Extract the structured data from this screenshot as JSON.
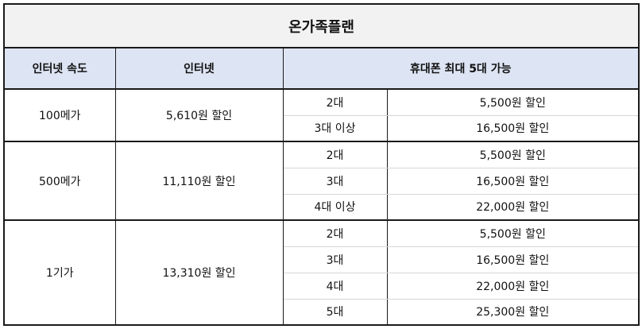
{
  "title": "온가족플랜",
  "headers": {
    "speed": "인터넷 속도",
    "internet": "인터넷",
    "phone": "휴대폰 최대 5대 가능"
  },
  "groups": [
    {
      "speed": "100메가",
      "internet_discount": "5,610원 할인",
      "rows": [
        {
          "phones": "2대",
          "discount": "5,500원 할인"
        },
        {
          "phones": "3대 이상",
          "discount": "16,500원 할인"
        }
      ]
    },
    {
      "speed": "500메가",
      "internet_discount": "11,110원 할인",
      "rows": [
        {
          "phones": "2대",
          "discount": "5,500원 할인"
        },
        {
          "phones": "3대",
          "discount": "16,500원 할인"
        },
        {
          "phones": "4대 이상",
          "discount": "22,000원 할인"
        }
      ]
    },
    {
      "speed": "1기가",
      "internet_discount": "13,310원 할인",
      "rows": [
        {
          "phones": "2대",
          "discount": "5,500원 할인"
        },
        {
          "phones": "3대",
          "discount": "16,500원 할인"
        },
        {
          "phones": "4대",
          "discount": "22,000원 할인"
        },
        {
          "phones": "5대",
          "discount": "25,300원 할인"
        }
      ]
    }
  ]
}
